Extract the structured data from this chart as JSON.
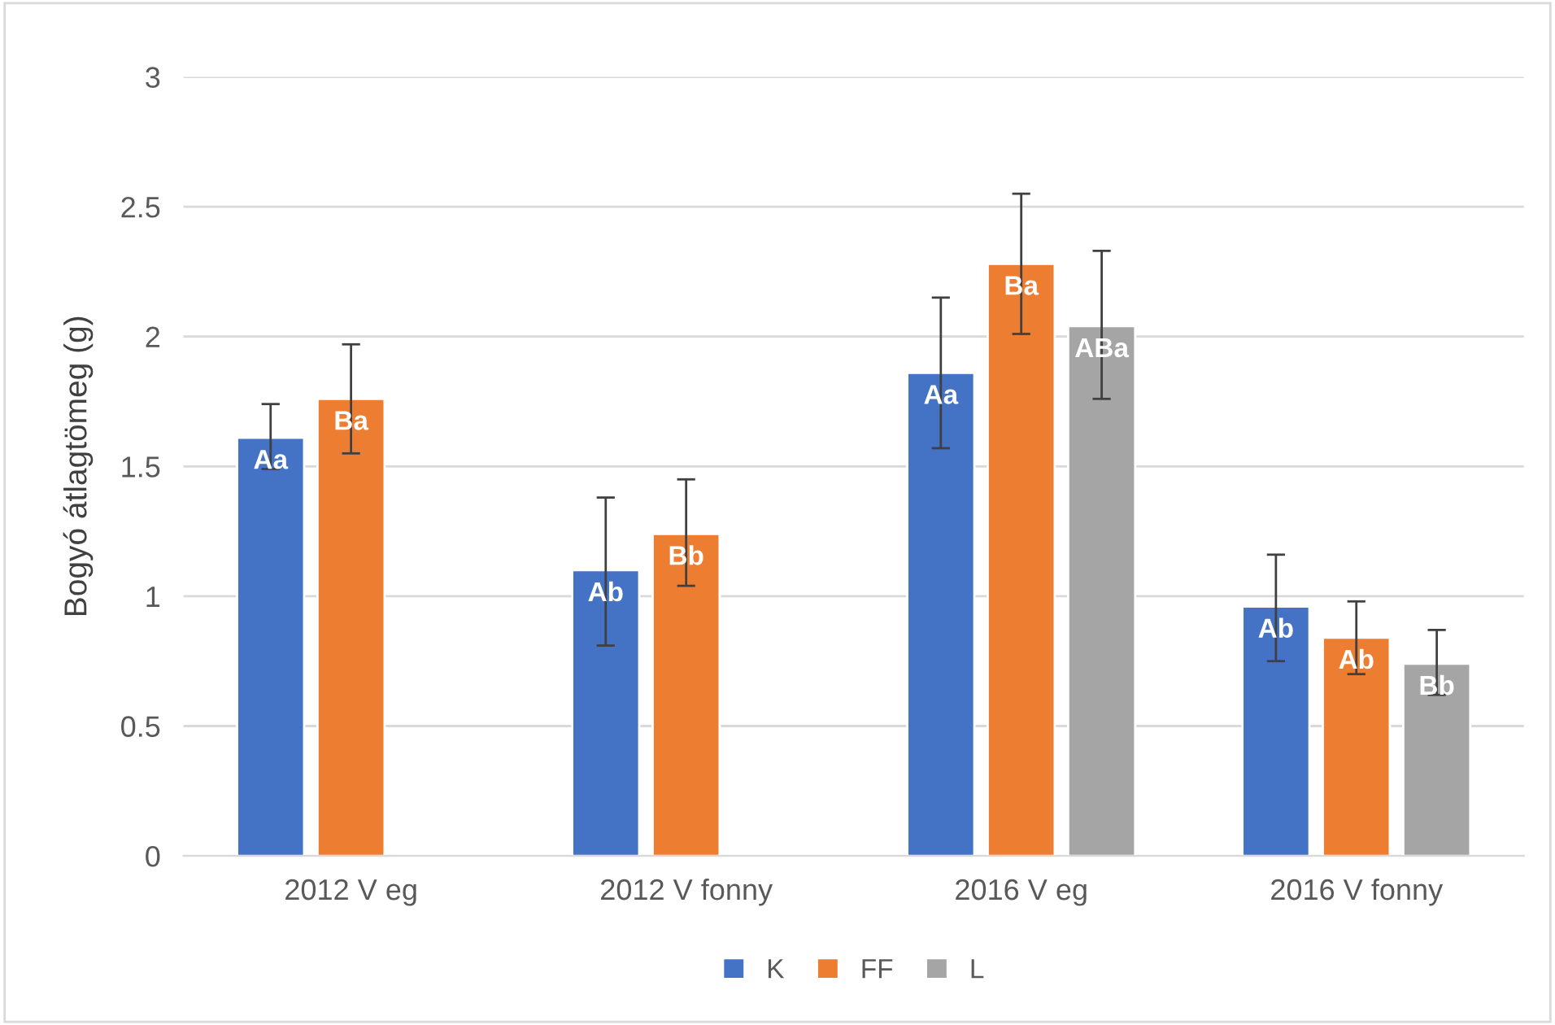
{
  "chart_data": {
    "type": "bar",
    "ylabel": "Bogyó átlagtömeg (g)",
    "categories": [
      "2012 V eg",
      "2012 V fonny",
      "2016 V eg",
      "2016 V fonny"
    ],
    "series": [
      {
        "name": "K",
        "color": "#4472c4",
        "values": [
          1.61,
          1.1,
          1.86,
          0.96
        ],
        "errors": [
          [
            1.49,
            1.74
          ],
          [
            0.81,
            1.38
          ],
          [
            1.57,
            2.15
          ],
          [
            0.75,
            1.16
          ]
        ],
        "value_labels": [
          "Aa",
          "Ab",
          "Aa",
          "Ab"
        ]
      },
      {
        "name": "FF",
        "color": "#ed7d31",
        "values": [
          1.76,
          1.24,
          2.28,
          0.84
        ],
        "errors": [
          [
            1.55,
            1.97
          ],
          [
            1.04,
            1.45
          ],
          [
            2.01,
            2.55
          ],
          [
            0.7,
            0.98
          ]
        ],
        "value_labels": [
          "Ba",
          "Bb",
          "Ba",
          "Ab"
        ]
      },
      {
        "name": "L",
        "color": "#a5a5a5",
        "values": [
          null,
          null,
          2.04,
          0.74
        ],
        "errors": [
          null,
          null,
          [
            1.76,
            2.33
          ],
          [
            0.62,
            0.87
          ]
        ],
        "value_labels": [
          null,
          null,
          "ABa",
          "Bb"
        ]
      }
    ],
    "ylim": [
      0,
      3
    ],
    "yticks": [
      0,
      0.5,
      1,
      1.5,
      2,
      2.5,
      3
    ],
    "grid": "y",
    "legend": "bottom"
  }
}
